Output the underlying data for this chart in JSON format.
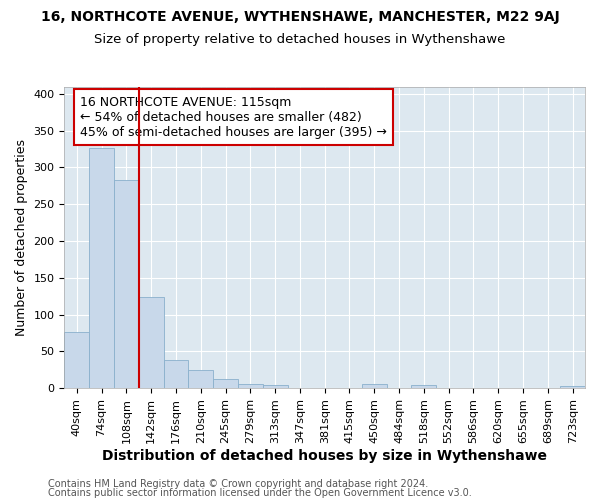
{
  "title1": "16, NORTHCOTE AVENUE, WYTHENSHAWE, MANCHESTER, M22 9AJ",
  "title2": "Size of property relative to detached houses in Wythenshawe",
  "xlabel": "Distribution of detached houses by size in Wythenshawe",
  "ylabel": "Number of detached properties",
  "footer1": "Contains HM Land Registry data © Crown copyright and database right 2024.",
  "footer2": "Contains public sector information licensed under the Open Government Licence v3.0.",
  "bar_labels": [
    "40sqm",
    "74sqm",
    "108sqm",
    "142sqm",
    "176sqm",
    "210sqm",
    "245sqm",
    "279sqm",
    "313sqm",
    "347sqm",
    "381sqm",
    "415sqm",
    "450sqm",
    "484sqm",
    "518sqm",
    "552sqm",
    "586sqm",
    "620sqm",
    "655sqm",
    "689sqm",
    "723sqm"
  ],
  "bar_values": [
    76,
    326,
    283,
    124,
    38,
    24,
    12,
    5,
    4,
    0,
    0,
    0,
    5,
    0,
    4,
    0,
    0,
    0,
    0,
    0,
    3
  ],
  "bar_color": "#c8d8ea",
  "bar_edge_color": "#8ab0cc",
  "vline_x": 2.5,
  "vline_color": "#cc0000",
  "annotation_text": "16 NORTHCOTE AVENUE: 115sqm\n← 54% of detached houses are smaller (482)\n45% of semi-detached houses are larger (395) →",
  "annotation_box_facecolor": "#ffffff",
  "annotation_box_edgecolor": "#cc0000",
  "ylim": [
    0,
    410
  ],
  "yticks": [
    0,
    50,
    100,
    150,
    200,
    250,
    300,
    350,
    400
  ],
  "fig_bg_color": "#ffffff",
  "axes_bg_color": "#dde8f0",
  "grid_color": "#ffffff",
  "title1_fontsize": 10,
  "title2_fontsize": 9.5,
  "xlabel_fontsize": 10,
  "ylabel_fontsize": 9,
  "tick_fontsize": 8,
  "annotation_fontsize": 9,
  "footer_fontsize": 7
}
